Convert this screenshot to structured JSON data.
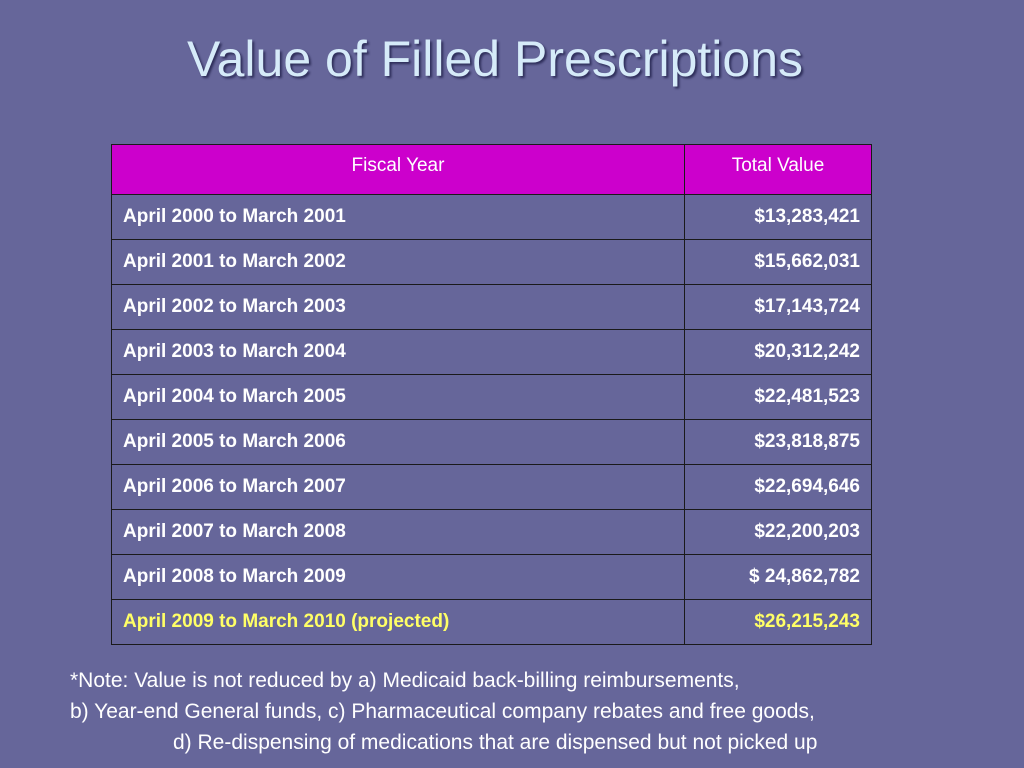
{
  "slide": {
    "title": "Value of Filled Prescriptions"
  },
  "table": {
    "headers": [
      "Fiscal Year",
      "Total Value"
    ],
    "rows": [
      {
        "fiscal_year": "April 2000 to March 2001",
        "total_value": "$13,283,421"
      },
      {
        "fiscal_year": "April 2001 to March 2002",
        "total_value": "$15,662,031"
      },
      {
        "fiscal_year": "April 2002 to March 2003",
        "total_value": "$17,143,724"
      },
      {
        "fiscal_year": "April 2003 to March 2004",
        "total_value": "$20,312,242"
      },
      {
        "fiscal_year": "April 2004 to March 2005",
        "total_value": "$22,481,523"
      },
      {
        "fiscal_year": "April 2005 to March 2006",
        "total_value": "$23,818,875"
      },
      {
        "fiscal_year": "April 2006 to March 2007",
        "total_value": "$22,694,646"
      },
      {
        "fiscal_year": "April 2007 to March 2008",
        "total_value": "$22,200,203"
      },
      {
        "fiscal_year": "April 2008 to March 2009",
        "total_value": "$ 24,862,782"
      },
      {
        "fiscal_year": "April 2009 to March 2010 (projected)",
        "total_value": "$26,215,243"
      }
    ]
  },
  "note": {
    "lines": [
      "*Note: Value is not reduced by a) Medicaid back-billing reimbursements,",
      "b) Year-end General funds, c) Pharmaceutical company rebates and free goods,",
      "d) Re-dispensing of medications that are dispensed but not picked up"
    ]
  },
  "colors": {
    "background": "#66669a",
    "title": "#d6ebf9",
    "header_fill": "#cc00cc",
    "projected_text": "#ffff66",
    "body_text": "#ffffff"
  }
}
